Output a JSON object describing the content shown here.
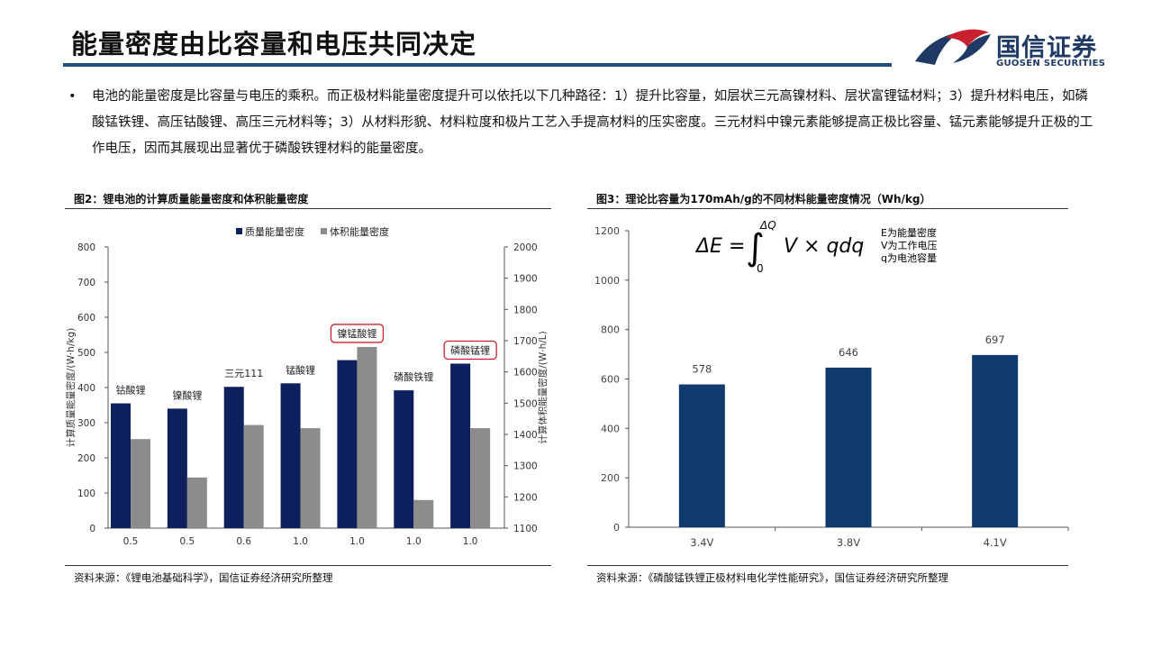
{
  "header": {
    "title": "能量密度由比容量和电压共同决定",
    "logo_cn": "国信证券",
    "logo_en": "GUOSEN SECURITIES",
    "brand_color": "#1f4e79",
    "accent_color": "#c8202f"
  },
  "bullet": {
    "marker": "•",
    "text": "电池的能量密度是比容量与电压的乘积。而正极材料能量密度提升可以依托以下几种路径：1）提升比容量，如层状三元高镍材料、层状富锂锰材料；3）提升材料电压，如磷酸锰铁锂、高压钴酸锂、高压三元材料等；3）从材料形貌、材料粒度和极片工艺入手提高材料的压实密度。三元材料中镍元素能够提高正极比容量、锰元素能够提升正极的工作电压，因而其展现出显著优于磷酸铁锂材料的能量密度。"
  },
  "figure2": {
    "title": "图2：锂电池的计算质量能量密度和体积能量密度",
    "source": "资料来源：《锂电池基础科学》，国信证券经济研究所整理"
  },
  "figure3": {
    "title": "图3：理论比容量为170mAh/g的不同材料能量密度情况（Wh/kg）",
    "source": "资料来源：《磷酸锰铁锂正极材料电化学性能研究》，国信证券经济研究所整理",
    "formula": {
      "lhs": "ΔE =",
      "upper": "ΔQ",
      "lower": "0",
      "integrand": "V × qdq"
    },
    "notes": [
      "E为能量密度",
      "V为工作电压",
      "q为电池容量"
    ]
  },
  "chart_data": [
    {
      "type": "bar",
      "categories": [
        "0.5",
        "0.5",
        "0.6",
        "1.0",
        "1.0",
        "1.0",
        "1.0"
      ],
      "bar_labels": [
        "钴酸锂",
        "镍酸锂",
        "三元111",
        "锰酸锂",
        "镍锰酸锂",
        "磷酸铁锂",
        "磷酸锰锂"
      ],
      "highlighted_labels": [
        "镍锰酸锂",
        "磷酸锰锂"
      ],
      "series": [
        {
          "name": "质量能量密度",
          "axis": "left",
          "color": "#0d1f5c",
          "values": [
            355,
            340,
            402,
            412,
            478,
            392,
            468
          ]
        },
        {
          "name": "体积能量密度",
          "axis": "right",
          "color": "#8c8c8c",
          "values": [
            1385,
            1262,
            1430,
            1420,
            1680,
            1190,
            1420
          ]
        }
      ],
      "ylabel": "计算质量能量密度/(W·h/kg)",
      "y2label": "计算体积能量密度/(W·h/L)",
      "ylim": [
        0,
        800
      ],
      "y_ticks": [
        0,
        100,
        200,
        300,
        400,
        500,
        600,
        700,
        800
      ],
      "y2lim": [
        1100,
        2000
      ],
      "y2_ticks": [
        1100,
        1200,
        1300,
        1400,
        1500,
        1600,
        1700,
        1800,
        1900,
        2000
      ],
      "legend": "top-center",
      "grid": false
    },
    {
      "type": "bar",
      "categories": [
        "3.4V",
        "3.8V",
        "4.1V"
      ],
      "values": [
        578,
        646,
        697
      ],
      "data_labels": [
        "578",
        "646",
        "697"
      ],
      "color": "#0e3a6e",
      "ylim": [
        0,
        1200
      ],
      "y_ticks": [
        0,
        200,
        400,
        600,
        800,
        1000,
        1200
      ],
      "grid": false
    }
  ]
}
